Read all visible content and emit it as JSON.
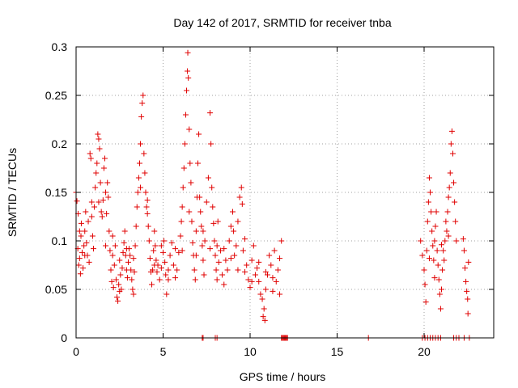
{
  "chart_data": {
    "type": "scatter",
    "title": "Day 142 of 2017, SRMTID for receiver tnba",
    "xlabel": "GPS time / hours",
    "ylabel": "SRMTID / TECUs",
    "xlim": [
      0,
      24
    ],
    "ylim": [
      0,
      0.3
    ],
    "xticks": [
      0,
      5,
      10,
      15,
      20
    ],
    "xtick_labels": [
      "0",
      "5",
      "10",
      "15",
      "20"
    ],
    "yticks": [
      0,
      0.05,
      0.1,
      0.15,
      0.2,
      0.25,
      0.3
    ],
    "ytick_labels": [
      "0",
      "0.05",
      "0.1",
      "0.15",
      "0.2",
      "0.25",
      "0.3"
    ],
    "grid": true,
    "marker": "+",
    "color": "#e00000",
    "series": [
      {
        "name": "SRMTID",
        "points": [
          [
            0.0,
            0.15
          ],
          [
            0.05,
            0.141
          ],
          [
            0.1,
            0.092
          ],
          [
            0.12,
            0.128
          ],
          [
            0.15,
            0.075
          ],
          [
            0.2,
            0.082
          ],
          [
            0.25,
            0.066
          ],
          [
            0.28,
            0.105
          ],
          [
            0.3,
            0.118
          ],
          [
            0.35,
            0.088
          ],
          [
            0.4,
            0.072
          ],
          [
            0.45,
            0.095
          ],
          [
            0.5,
            0.11
          ],
          [
            0.55,
            0.13
          ],
          [
            0.6,
            0.098
          ],
          [
            0.65,
            0.085
          ],
          [
            0.7,
            0.12
          ],
          [
            0.75,
            0.078
          ],
          [
            0.8,
            0.19
          ],
          [
            0.85,
            0.185
          ],
          [
            0.9,
            0.14
          ],
          [
            0.95,
            0.105
          ],
          [
            1.0,
            0.092
          ],
          [
            1.05,
            0.135
          ],
          [
            1.1,
            0.155
          ],
          [
            1.15,
            0.17
          ],
          [
            1.2,
            0.18
          ],
          [
            1.25,
            0.21
          ],
          [
            1.3,
            0.205
          ],
          [
            1.35,
            0.195
          ],
          [
            1.4,
            0.16
          ],
          [
            1.45,
            0.13
          ],
          [
            1.5,
            0.125
          ],
          [
            1.55,
            0.142
          ],
          [
            1.6,
            0.175
          ],
          [
            1.65,
            0.185
          ],
          [
            1.7,
            0.15
          ],
          [
            1.75,
            0.128
          ],
          [
            1.8,
            0.16
          ],
          [
            1.85,
            0.145
          ],
          [
            1.9,
            0.11
          ],
          [
            1.95,
            0.09
          ],
          [
            2.0,
            0.07
          ],
          [
            2.05,
            0.058
          ],
          [
            2.1,
            0.085
          ],
          [
            2.15,
            0.052
          ],
          [
            2.2,
            0.075
          ],
          [
            2.25,
            0.095
          ],
          [
            2.3,
            0.06
          ],
          [
            2.35,
            0.042
          ],
          [
            2.4,
            0.038
          ],
          [
            2.45,
            0.055
          ],
          [
            2.5,
            0.08
          ],
          [
            2.55,
            0.065
          ],
          [
            2.6,
            0.05
          ],
          [
            2.65,
            0.072
          ],
          [
            2.7,
            0.088
          ],
          [
            2.75,
            0.098
          ],
          [
            2.8,
            0.11
          ],
          [
            2.85,
            0.085
          ],
          [
            2.9,
            0.07
          ],
          [
            2.95,
            0.062
          ],
          [
            3.0,
            0.078
          ],
          [
            3.05,
            0.092
          ],
          [
            3.1,
            0.085
          ],
          [
            3.15,
            0.07
          ],
          [
            3.2,
            0.06
          ],
          [
            3.25,
            0.05
          ],
          [
            3.3,
            0.045
          ],
          [
            3.35,
            0.068
          ],
          [
            3.4,
            0.095
          ],
          [
            3.45,
            0.115
          ],
          [
            3.5,
            0.135
          ],
          [
            3.55,
            0.15
          ],
          [
            3.6,
            0.165
          ],
          [
            3.65,
            0.18
          ],
          [
            3.7,
            0.2
          ],
          [
            3.75,
            0.228
          ],
          [
            3.8,
            0.242
          ],
          [
            3.85,
            0.25
          ],
          [
            3.9,
            0.19
          ],
          [
            3.95,
            0.17
          ],
          [
            4.0,
            0.15
          ],
          [
            4.05,
            0.135
          ],
          [
            4.1,
            0.128
          ],
          [
            4.15,
            0.115
          ],
          [
            4.2,
            0.1
          ],
          [
            4.25,
            0.082
          ],
          [
            4.3,
            0.068
          ],
          [
            4.35,
            0.055
          ],
          [
            4.4,
            0.07
          ],
          [
            4.45,
            0.09
          ],
          [
            4.5,
            0.11
          ],
          [
            4.55,
            0.095
          ],
          [
            4.6,
            0.08
          ],
          [
            4.65,
            0.068
          ],
          [
            4.7,
            0.075
          ],
          [
            4.8,
            0.06
          ],
          [
            4.9,
            0.072
          ],
          [
            5.0,
            0.088
          ],
          [
            5.05,
            0.1
          ],
          [
            5.1,
            0.078
          ],
          [
            5.15,
            0.065
          ],
          [
            5.2,
            0.045
          ],
          [
            5.3,
            0.06
          ],
          [
            5.4,
            0.085
          ],
          [
            5.5,
            0.098
          ],
          [
            5.6,
            0.075
          ],
          [
            5.7,
            0.062
          ],
          [
            5.8,
            0.07
          ],
          [
            5.9,
            0.088
          ],
          [
            6.0,
            0.105
          ],
          [
            6.05,
            0.12
          ],
          [
            6.1,
            0.135
          ],
          [
            6.15,
            0.155
          ],
          [
            6.2,
            0.175
          ],
          [
            6.25,
            0.2
          ],
          [
            6.3,
            0.23
          ],
          [
            6.35,
            0.255
          ],
          [
            6.4,
            0.275
          ],
          [
            6.42,
            0.294
          ],
          [
            6.45,
            0.268
          ],
          [
            6.5,
            0.215
          ],
          [
            6.55,
            0.18
          ],
          [
            6.6,
            0.16
          ],
          [
            6.65,
            0.12
          ],
          [
            6.7,
            0.098
          ],
          [
            6.75,
            0.085
          ],
          [
            6.8,
            0.07
          ],
          [
            6.85,
            0.06
          ],
          [
            6.9,
            0.11
          ],
          [
            6.95,
            0.145
          ],
          [
            7.0,
            0.18
          ],
          [
            7.05,
            0.21
          ],
          [
            7.1,
            0.145
          ],
          [
            7.15,
            0.13
          ],
          [
            7.2,
            0.115
          ],
          [
            7.25,
            0.095
          ],
          [
            7.3,
            0.08
          ],
          [
            7.35,
            0.065
          ],
          [
            7.4,
            0.1
          ],
          [
            7.5,
            0.14
          ],
          [
            7.6,
            0.165
          ],
          [
            7.7,
            0.232
          ],
          [
            7.75,
            0.2
          ],
          [
            7.8,
            0.155
          ],
          [
            7.85,
            0.135
          ],
          [
            7.9,
            0.118
          ],
          [
            7.95,
            0.1
          ],
          [
            8.0,
            0.085
          ],
          [
            8.05,
            0.07
          ],
          [
            8.1,
            0.095
          ],
          [
            8.15,
            0.12
          ],
          [
            8.2,
            0.078
          ],
          [
            8.3,
            0.09
          ],
          [
            8.4,
            0.065
          ],
          [
            8.5,
            0.055
          ],
          [
            8.6,
            0.08
          ],
          [
            8.7,
            0.07
          ],
          [
            8.8,
            0.1
          ],
          [
            8.9,
            0.115
          ],
          [
            9.0,
            0.13
          ],
          [
            9.05,
            0.11
          ],
          [
            9.1,
            0.085
          ],
          [
            9.2,
            0.095
          ],
          [
            9.3,
            0.12
          ],
          [
            9.4,
            0.145
          ],
          [
            9.5,
            0.155
          ],
          [
            9.55,
            0.138
          ],
          [
            9.6,
            0.09
          ],
          [
            9.7,
            0.068
          ],
          [
            9.8,
            0.075
          ],
          [
            9.9,
            0.06
          ],
          [
            10.0,
            0.052
          ],
          [
            10.1,
            0.08
          ],
          [
            10.2,
            0.095
          ],
          [
            10.3,
            0.065
          ],
          [
            10.4,
            0.072
          ],
          [
            10.5,
            0.058
          ],
          [
            10.6,
            0.045
          ],
          [
            10.7,
            0.04
          ],
          [
            10.75,
            0.022
          ],
          [
            10.8,
            0.03
          ],
          [
            10.85,
            0.018
          ],
          [
            10.9,
            0.05
          ],
          [
            11.0,
            0.065
          ],
          [
            11.1,
            0.085
          ],
          [
            11.2,
            0.075
          ],
          [
            11.3,
            0.062
          ],
          [
            11.4,
            0.09
          ],
          [
            11.5,
            0.058
          ],
          [
            11.6,
            0.07
          ],
          [
            11.7,
            0.045
          ],
          [
            11.8,
            0.1
          ],
          [
            0.2,
            0.11
          ],
          [
            0.5,
            0.085
          ],
          [
            0.9,
            0.125
          ],
          [
            1.3,
            0.14
          ],
          [
            1.7,
            0.095
          ],
          [
            2.1,
            0.105
          ],
          [
            2.5,
            0.048
          ],
          [
            2.9,
            0.092
          ],
          [
            3.3,
            0.082
          ],
          [
            3.7,
            0.155
          ],
          [
            4.1,
            0.142
          ],
          [
            4.5,
            0.075
          ],
          [
            4.9,
            0.095
          ],
          [
            5.3,
            0.07
          ],
          [
            5.7,
            0.092
          ],
          [
            6.1,
            0.09
          ],
          [
            6.5,
            0.13
          ],
          [
            6.9,
            0.085
          ],
          [
            7.3,
            0.11
          ],
          [
            7.7,
            0.092
          ],
          [
            8.1,
            0.06
          ],
          [
            8.5,
            0.092
          ],
          [
            8.9,
            0.082
          ],
          [
            9.3,
            0.07
          ],
          [
            9.7,
            0.102
          ],
          [
            10.1,
            0.058
          ],
          [
            10.5,
            0.078
          ],
          [
            10.9,
            0.068
          ],
          [
            11.3,
            0.048
          ],
          [
            11.7,
            0.082
          ],
          [
            19.8,
            0.1
          ],
          [
            19.9,
            0.085
          ],
          [
            20.0,
            0.07
          ],
          [
            20.05,
            0.055
          ],
          [
            20.1,
            0.037
          ],
          [
            20.15,
            0.09
          ],
          [
            20.2,
            0.12
          ],
          [
            20.25,
            0.14
          ],
          [
            20.3,
            0.165
          ],
          [
            20.35,
            0.15
          ],
          [
            20.4,
            0.13
          ],
          [
            20.45,
            0.11
          ],
          [
            20.5,
            0.095
          ],
          [
            20.55,
            0.08
          ],
          [
            20.6,
            0.1
          ],
          [
            20.65,
            0.115
          ],
          [
            20.7,
            0.13
          ],
          [
            20.75,
            0.09
          ],
          [
            20.8,
            0.075
          ],
          [
            20.85,
            0.06
          ],
          [
            20.9,
            0.045
          ],
          [
            20.95,
            0.03
          ],
          [
            21.0,
            0.05
          ],
          [
            21.05,
            0.07
          ],
          [
            21.1,
            0.09
          ],
          [
            21.15,
            0.08
          ],
          [
            21.2,
            0.1
          ],
          [
            21.25,
            0.12
          ],
          [
            21.3,
            0.11
          ],
          [
            21.35,
            0.13
          ],
          [
            21.4,
            0.145
          ],
          [
            21.45,
            0.155
          ],
          [
            21.5,
            0.17
          ],
          [
            21.55,
            0.2
          ],
          [
            21.6,
            0.213
          ],
          [
            21.65,
            0.19
          ],
          [
            21.7,
            0.16
          ],
          [
            21.75,
            0.14
          ],
          [
            21.8,
            0.12
          ],
          [
            21.85,
            0.1
          ],
          [
            22.25,
            0.102
          ],
          [
            22.3,
            0.09
          ],
          [
            22.35,
            0.072
          ],
          [
            22.4,
            0.058
          ],
          [
            22.45,
            0.048
          ],
          [
            22.5,
            0.04
          ],
          [
            22.52,
            0.025
          ],
          [
            22.55,
            0.078
          ],
          [
            20.6,
            0.062
          ],
          [
            21.0,
            0.096
          ],
          [
            21.4,
            0.105
          ],
          [
            20.3,
            0.082
          ],
          [
            7.25,
            0.0
          ],
          [
            7.3,
            0.0
          ],
          [
            8.0,
            0.0
          ],
          [
            8.1,
            0.0
          ],
          [
            11.8,
            0.0
          ],
          [
            11.85,
            0.0
          ],
          [
            11.9,
            0.0
          ],
          [
            11.95,
            0.0
          ],
          [
            12.0,
            0.0
          ],
          [
            12.05,
            0.0
          ],
          [
            12.1,
            0.0
          ],
          [
            12.15,
            0.0
          ],
          [
            16.8,
            0.0
          ],
          [
            19.9,
            0.0
          ],
          [
            20.05,
            0.0
          ],
          [
            20.2,
            0.0
          ],
          [
            20.35,
            0.0
          ],
          [
            20.5,
            0.0
          ],
          [
            20.65,
            0.0
          ],
          [
            20.8,
            0.0
          ],
          [
            20.95,
            0.0
          ],
          [
            21.7,
            0.0
          ],
          [
            21.85,
            0.0
          ],
          [
            22.0,
            0.0
          ],
          [
            22.3,
            0.0
          ],
          [
            22.6,
            0.0
          ]
        ]
      }
    ]
  }
}
